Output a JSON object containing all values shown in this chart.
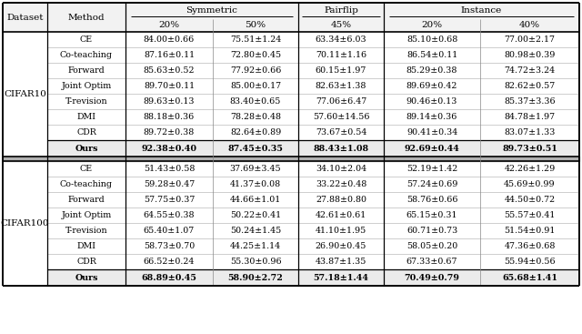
{
  "cifar10_rows": [
    [
      "CE",
      "84.00±0.66",
      "75.51±1.24",
      "63.34±6.03",
      "85.10±0.68",
      "77.00±2.17"
    ],
    [
      "Co-teaching",
      "87.16±0.11",
      "72.80±0.45",
      "70.11±1.16",
      "86.54±0.11",
      "80.98±0.39"
    ],
    [
      "Forward",
      "85.63±0.52",
      "77.92±0.66",
      "60.15±1.97",
      "85.29±0.38",
      "74.72±3.24"
    ],
    [
      "Joint Optim",
      "89.70±0.11",
      "85.00±0.17",
      "82.63±1.38",
      "89.69±0.42",
      "82.62±0.57"
    ],
    [
      "T-revision",
      "89.63±0.13",
      "83.40±0.65",
      "77.06±6.47",
      "90.46±0.13",
      "85.37±3.36"
    ],
    [
      "DMI",
      "88.18±0.36",
      "78.28±0.48",
      "57.60±14.56",
      "89.14±0.36",
      "84.78±1.97"
    ],
    [
      "CDR",
      "89.72±0.38",
      "82.64±0.89",
      "73.67±0.54",
      "90.41±0.34",
      "83.07±1.33"
    ]
  ],
  "cifar10_ours": [
    "Ours",
    "92.38±0.40",
    "87.45±0.35",
    "88.43±1.08",
    "92.69±0.44",
    "89.73±0.51"
  ],
  "cifar100_rows": [
    [
      "CE",
      "51.43±0.58",
      "37.69±3.45",
      "34.10±2.04",
      "52.19±1.42",
      "42.26±1.29"
    ],
    [
      "Co-teaching",
      "59.28±0.47",
      "41.37±0.08",
      "33.22±0.48",
      "57.24±0.69",
      "45.69±0.99"
    ],
    [
      "Forward",
      "57.75±0.37",
      "44.66±1.01",
      "27.88±0.80",
      "58.76±0.66",
      "44.50±0.72"
    ],
    [
      "Joint Optim",
      "64.55±0.38",
      "50.22±0.41",
      "42.61±0.61",
      "65.15±0.31",
      "55.57±0.41"
    ],
    [
      "T-revision",
      "65.40±1.07",
      "50.24±1.45",
      "41.10±1.95",
      "60.71±0.73",
      "51.54±0.91"
    ],
    [
      "DMI",
      "58.73±0.70",
      "44.25±1.14",
      "26.90±0.45",
      "58.05±0.20",
      "47.36±0.68"
    ],
    [
      "CDR",
      "66.52±0.24",
      "55.30±0.96",
      "43.87±1.35",
      "67.33±0.67",
      "55.94±0.56"
    ]
  ],
  "cifar100_ours": [
    "Ours",
    "68.89±0.45",
    "58.90±2.72",
    "57.18±1.44",
    "70.49±0.79",
    "65.68±1.41"
  ],
  "dataset_label_cifar10": "CIFAR10",
  "dataset_label_cifar100": "CIFAR100",
  "col_header1": [
    "Dataset",
    "Method",
    "Symmetric",
    "Pairflip",
    "Instance"
  ],
  "col_header2_pcts": [
    "20%",
    "50%",
    "45%",
    "20%",
    "40%"
  ],
  "font_size": 6.8,
  "header_font_size": 7.5,
  "bg_white": "#ffffff",
  "bg_gray": "#f2f2f2",
  "border_color": "#000000"
}
